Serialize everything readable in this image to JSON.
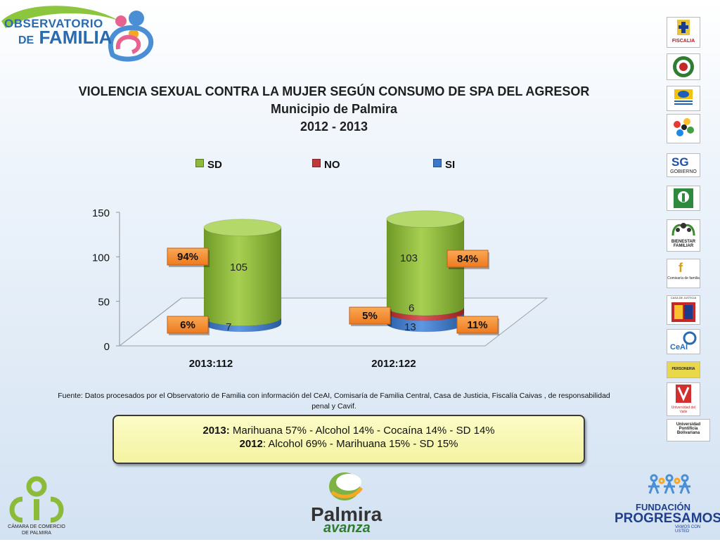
{
  "header": {
    "org_line1": "OBSERVATORIO",
    "org_line2_de": "DE",
    "org_line2_main": "FAMILIA"
  },
  "chart_data": {
    "type": "bar",
    "title": "VIOLENCIA SEXUAL CONTRA LA MUJER SEGÚN CONSUMO DE SPA DEL AGRESOR",
    "subtitle": "Municipio de Palmira",
    "period": "2012 - 2013",
    "categories": [
      "2013:112",
      "2012:122"
    ],
    "series": [
      {
        "name": "SI",
        "values": [
          7,
          13
        ],
        "percent_labels": [
          "6%",
          "11%"
        ],
        "color": "#3b78c9"
      },
      {
        "name": "NO",
        "values": [
          0,
          6
        ],
        "percent_labels": [
          "",
          "5%"
        ],
        "color": "#c0393b"
      },
      {
        "name": "SD",
        "values": [
          105,
          103
        ],
        "percent_labels": [
          "94%",
          "84%"
        ],
        "color": "#8cbb3a"
      }
    ],
    "legend_order": [
      "SD",
      "NO",
      "SI"
    ],
    "y_ticks": [
      "0",
      "50",
      "100",
      "150"
    ],
    "ylim": [
      0,
      150
    ],
    "legend_placement": "top",
    "stacked": true,
    "style": "3d-cylinder"
  },
  "source_text": "Fuente: Datos procesados por el Observatorio de  Familia con información del CeAI, Comisaría de Familia Central, Casa de Justicia, Fiscalía Caivas , de responsabilidad penal y Cavif.",
  "summary": {
    "y2013_label": "2013:",
    "y2013_text": " Marihuana 57%   -  Alcohol 14%   -   Cocaína 14%  - SD 14%",
    "y2012_label": "2012",
    "y2012_text": ": Alcohol 69%  - Marihuana 15% - SD 15%"
  },
  "right_logos": [
    {
      "name": "FISCALIA"
    },
    {
      "name": "escudo"
    },
    {
      "name": "logo"
    },
    {
      "name": "logo"
    },
    {
      "name": "GOBIERNO"
    },
    {
      "name": "logo"
    },
    {
      "name": "BIENESTAR FAMILIAR"
    },
    {
      "name": "Comisaría de familia"
    },
    {
      "name": "CASA DE JUSTICIA"
    },
    {
      "name": "CeAI"
    },
    {
      "name": "PERSONERIA"
    },
    {
      "name": "Universidad del Valle"
    },
    {
      "name": "Universidad Pontificia Bolivariana"
    }
  ],
  "footer": {
    "camara_line1": "CÁMARA DE COMERCIO",
    "camara_line2": "DE PALMIRA",
    "palmira_main": "Palmira",
    "palmira_sub": "avanza",
    "fund_line1": "FUNDACIÓN",
    "fund_line2": "PROGRESAMOS",
    "fund_line3": "VAMOS CON USTED"
  },
  "colors": {
    "sd": "#8cbb3a",
    "no": "#c0393b",
    "si": "#3b78c9",
    "badge": "#f28a2e"
  }
}
